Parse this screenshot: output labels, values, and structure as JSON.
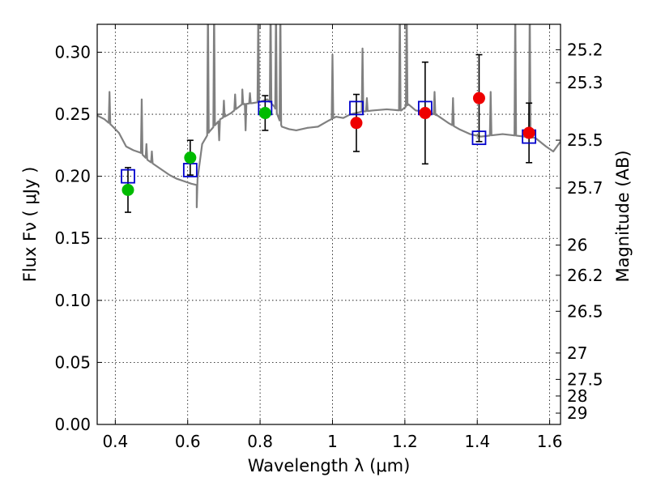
{
  "chart_data": {
    "type": "scatter",
    "xlabel": "Wavelength  λ (μm)",
    "ylabel": "Flux  Fν  ( μJy )",
    "y2label": "Magnitude (AB)",
    "xlim": [
      0.35,
      1.63
    ],
    "ylim": [
      0.0,
      0.3225
    ],
    "grid": true,
    "x_ticks": [
      {
        "value": 0.4,
        "label": "0.4"
      },
      {
        "value": 0.6,
        "label": "0.6"
      },
      {
        "value": 0.8,
        "label": "0.8"
      },
      {
        "value": 1.0,
        "label": "1"
      },
      {
        "value": 1.2,
        "label": "1.2"
      },
      {
        "value": 1.4,
        "label": "1.4"
      },
      {
        "value": 1.6,
        "label": "1.6"
      }
    ],
    "y_ticks": [
      {
        "value": 0.0,
        "label": "0.00"
      },
      {
        "value": 0.05,
        "label": "0.05"
      },
      {
        "value": 0.1,
        "label": "0.10"
      },
      {
        "value": 0.15,
        "label": "0.15"
      },
      {
        "value": 0.2,
        "label": "0.20"
      },
      {
        "value": 0.25,
        "label": "0.25"
      },
      {
        "value": 0.3,
        "label": "0.30"
      }
    ],
    "mag_ticks": [
      {
        "value": 25.2,
        "label": "25.2"
      },
      {
        "value": 25.3,
        "label": "25.3"
      },
      {
        "value": 25.5,
        "label": "25.5"
      },
      {
        "value": 25.7,
        "label": "25.7"
      },
      {
        "value": 26.0,
        "label": "26"
      },
      {
        "value": 26.2,
        "label": "26.2"
      },
      {
        "value": 26.5,
        "label": "26.5"
      },
      {
        "value": 27.0,
        "label": "27"
      },
      {
        "value": 27.5,
        "label": "27.5"
      },
      {
        "value": 28.0,
        "label": "28"
      },
      {
        "value": 29.0,
        "label": "29"
      }
    ],
    "model_spectrum": {
      "color": "#808080",
      "continuum": [
        [
          0.35,
          0.249
        ],
        [
          0.37,
          0.246
        ],
        [
          0.39,
          0.241
        ],
        [
          0.41,
          0.235
        ],
        [
          0.43,
          0.224
        ],
        [
          0.45,
          0.221
        ],
        [
          0.47,
          0.219
        ],
        [
          0.49,
          0.213
        ],
        [
          0.51,
          0.209
        ],
        [
          0.53,
          0.205
        ],
        [
          0.55,
          0.201
        ],
        [
          0.57,
          0.198
        ],
        [
          0.59,
          0.196
        ],
        [
          0.61,
          0.194
        ],
        [
          0.625,
          0.193
        ],
        [
          0.64,
          0.226
        ],
        [
          0.66,
          0.236
        ],
        [
          0.69,
          0.246
        ],
        [
          0.72,
          0.251
        ],
        [
          0.75,
          0.258
        ],
        [
          0.78,
          0.259
        ],
        [
          0.8,
          0.26
        ],
        [
          0.82,
          0.262
        ],
        [
          0.84,
          0.256
        ],
        [
          0.86,
          0.24
        ],
        [
          0.88,
          0.238
        ],
        [
          0.9,
          0.237
        ],
        [
          0.93,
          0.239
        ],
        [
          0.96,
          0.24
        ],
        [
          0.99,
          0.245
        ],
        [
          1.01,
          0.248
        ],
        [
          1.03,
          0.247
        ],
        [
          1.05,
          0.25
        ],
        [
          1.08,
          0.252
        ],
        [
          1.11,
          0.253
        ],
        [
          1.15,
          0.254
        ],
        [
          1.19,
          0.253
        ],
        [
          1.21,
          0.258
        ],
        [
          1.23,
          0.253
        ],
        [
          1.26,
          0.252
        ],
        [
          1.29,
          0.249
        ],
        [
          1.32,
          0.243
        ],
        [
          1.35,
          0.238
        ],
        [
          1.38,
          0.234
        ],
        [
          1.41,
          0.232
        ],
        [
          1.44,
          0.233
        ],
        [
          1.47,
          0.234
        ],
        [
          1.5,
          0.233
        ],
        [
          1.53,
          0.232
        ],
        [
          1.56,
          0.231
        ],
        [
          1.59,
          0.224
        ],
        [
          1.61,
          0.22
        ],
        [
          1.63,
          0.228
        ]
      ],
      "lines": [
        {
          "x": 0.384,
          "peak": 0.268
        },
        {
          "x": 0.473,
          "peak": 0.262
        },
        {
          "x": 0.486,
          "peak": 0.226
        },
        {
          "x": 0.501,
          "peak": 0.22
        },
        {
          "x": 0.656,
          "peak": 0.34
        },
        {
          "x": 0.673,
          "peak": 0.34
        },
        {
          "x": 0.7,
          "peak": 0.261
        },
        {
          "x": 0.731,
          "peak": 0.266
        },
        {
          "x": 0.751,
          "peak": 0.27
        },
        {
          "x": 0.772,
          "peak": 0.267
        },
        {
          "x": 0.795,
          "peak": 0.332
        },
        {
          "x": 0.829,
          "peak": 0.34
        },
        {
          "x": 0.844,
          "peak": 0.34
        },
        {
          "x": 0.856,
          "peak": 0.34
        },
        {
          "x": 1.0,
          "peak": 0.298
        },
        {
          "x": 1.083,
          "peak": 0.303
        },
        {
          "x": 1.095,
          "peak": 0.263
        },
        {
          "x": 1.186,
          "peak": 0.34
        },
        {
          "x": 1.205,
          "peak": 0.34
        },
        {
          "x": 1.282,
          "peak": 0.268
        },
        {
          "x": 1.333,
          "peak": 0.263
        },
        {
          "x": 1.437,
          "peak": 0.268
        },
        {
          "x": 1.505,
          "peak": 0.34
        },
        {
          "x": 1.545,
          "peak": 0.34
        }
      ],
      "dips": [
        {
          "x": 0.625,
          "value": 0.175
        },
        {
          "x": 0.687,
          "value": 0.229
        },
        {
          "x": 0.76,
          "value": 0.237
        }
      ]
    },
    "model_photometry": {
      "color": "#0000cc",
      "marker": "open-square",
      "points": [
        {
          "x": 0.435,
          "y": 0.2
        },
        {
          "x": 0.607,
          "y": 0.205
        },
        {
          "x": 0.814,
          "y": 0.255
        },
        {
          "x": 1.066,
          "y": 0.255
        },
        {
          "x": 1.256,
          "y": 0.255
        },
        {
          "x": 1.405,
          "y": 0.231
        },
        {
          "x": 1.543,
          "y": 0.232
        }
      ]
    },
    "observed_optical": {
      "color": "#00bb00",
      "marker": "filled-circle",
      "points": [
        {
          "x": 0.435,
          "y": 0.189,
          "err": 0.018
        },
        {
          "x": 0.607,
          "y": 0.215,
          "err": 0.014
        },
        {
          "x": 0.814,
          "y": 0.251,
          "err": 0.014
        }
      ]
    },
    "observed_ir": {
      "color": "#ee0000",
      "marker": "filled-circle",
      "points": [
        {
          "x": 1.066,
          "y": 0.243,
          "err": 0.023
        },
        {
          "x": 1.256,
          "y": 0.251,
          "err": 0.041
        },
        {
          "x": 1.405,
          "y": 0.263,
          "err": 0.035
        },
        {
          "x": 1.543,
          "y": 0.235,
          "err": 0.024
        }
      ]
    }
  }
}
